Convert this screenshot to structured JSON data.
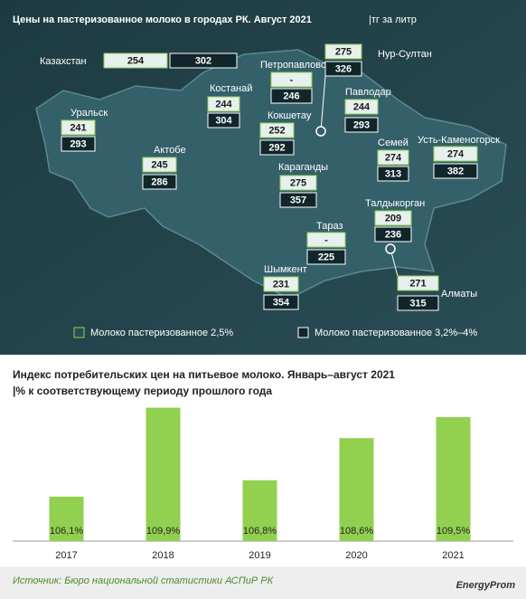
{
  "header": {
    "title": "Цены на пастеризованное молоко в городах РК. Август 2021",
    "unit": "|тг за литр"
  },
  "map": {
    "country": {
      "name": "Казахстан",
      "values": [
        254,
        302
      ]
    },
    "cities": [
      {
        "name": "Петропавловск",
        "values": [
          "-",
          246
        ]
      },
      {
        "name": "Нур-Султан",
        "values": [
          275,
          326
        ]
      },
      {
        "name": "Костанай",
        "values": [
          244,
          304
        ]
      },
      {
        "name": "Кокшетау",
        "values": [
          252,
          292
        ]
      },
      {
        "name": "Павлодар",
        "values": [
          244,
          293
        ]
      },
      {
        "name": "Уральск",
        "values": [
          241,
          293
        ]
      },
      {
        "name": "Актобе",
        "values": [
          245,
          286
        ]
      },
      {
        "name": "Семей",
        "values": [
          274,
          313
        ]
      },
      {
        "name": "Усть-Каменогорск",
        "values": [
          274,
          382
        ]
      },
      {
        "name": "Караганды",
        "values": [
          275,
          357
        ]
      },
      {
        "name": "Талдыкорган",
        "values": [
          209,
          236
        ]
      },
      {
        "name": "Тараз",
        "values": [
          "-",
          225
        ]
      },
      {
        "name": "Шымкент",
        "values": [
          231,
          354
        ]
      },
      {
        "name": "Алматы",
        "values": [
          271,
          315
        ]
      }
    ]
  },
  "legend": [
    "Молоко пастеризованное 2,5%",
    "Молоко пастеризованное 3,2%–4%"
  ],
  "chart_data": {
    "type": "bar",
    "title": "Индекс потребительских цен на питьевое молоко. Январь–август  2021 |% к соответствующему  периоду прошлого года",
    "categories": [
      "2017",
      "2018",
      "2019",
      "2020",
      "2021"
    ],
    "values": [
      106.1,
      109.9,
      106.8,
      108.6,
      109.5
    ],
    "value_labels": [
      "106,1%",
      "109,9%",
      "106,8%",
      "108,6%",
      "109,5%"
    ],
    "color": "#92d050",
    "ylim": [
      104.2,
      110
    ]
  },
  "source": "Источник: Бюро национальной статистики АСПиР РК",
  "logo": "EnergyProm"
}
